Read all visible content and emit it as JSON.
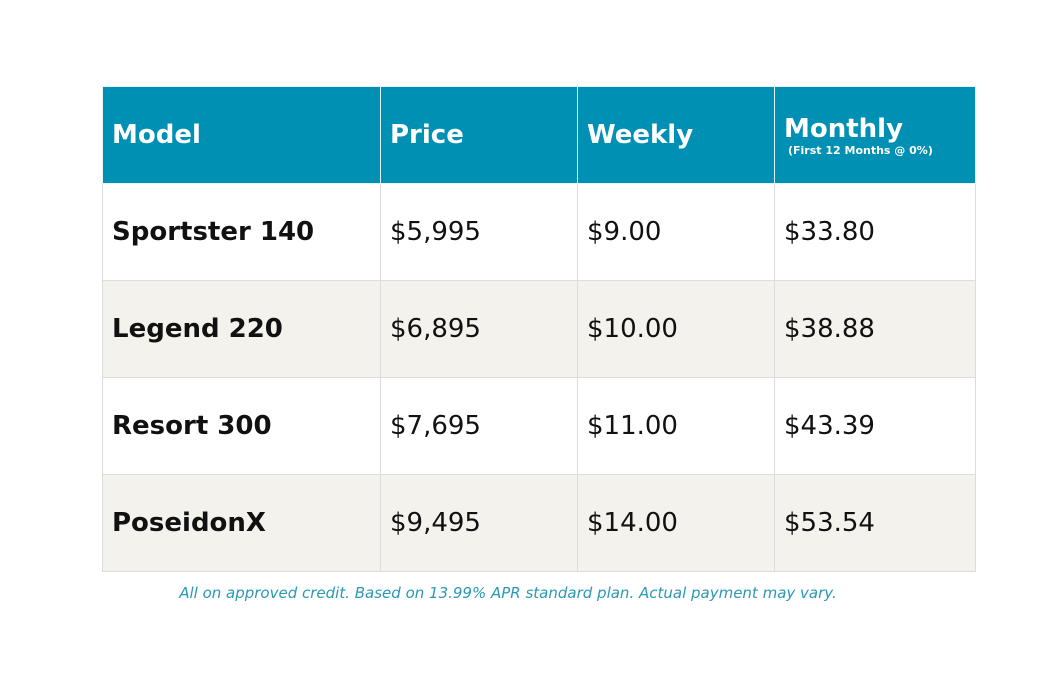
{
  "table": {
    "header": [
      {
        "label": "Model"
      },
      {
        "label": "Price"
      },
      {
        "label": "Weekly"
      },
      {
        "label": "Monthly",
        "note": "(First 12 Months @ 0%)"
      }
    ],
    "rows": [
      [
        "Sportster 140",
        "$5,995",
        "$9.00",
        "$33.80"
      ],
      [
        "Legend 220",
        "$6,895",
        "$10.00",
        "$38.88"
      ],
      [
        "Resort 300",
        "$7,695",
        "$11.00",
        "$43.39"
      ],
      [
        "PoseidonX",
        "$9,495",
        "$14.00",
        "$53.54"
      ]
    ],
    "footnote": "All on approved credit. Based on 13.99% APR standard plan. Actual payment may vary."
  }
}
